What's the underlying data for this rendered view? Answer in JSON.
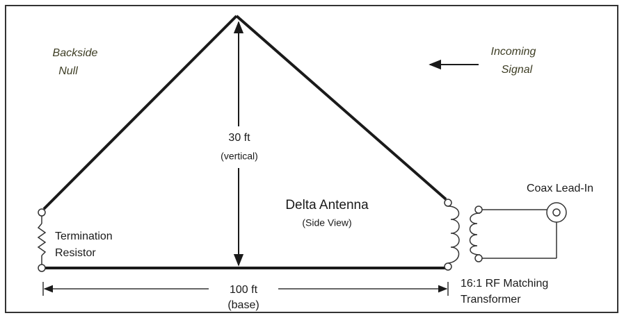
{
  "diagram": {
    "backside_null": [
      "Backside",
      "Null"
    ],
    "incoming_signal": [
      "Incoming",
      "Signal"
    ],
    "height": {
      "value": "30 ft",
      "note": "(vertical)"
    },
    "antenna": {
      "title": "Delta Antenna",
      "view": "(Side View)"
    },
    "termination": [
      "Termination",
      "Resistor"
    ],
    "base": {
      "value": "100 ft",
      "note": "(base)"
    },
    "transformer": [
      "16:1 RF Matching",
      "Transformer"
    ],
    "coax": "Coax Lead-In"
  }
}
